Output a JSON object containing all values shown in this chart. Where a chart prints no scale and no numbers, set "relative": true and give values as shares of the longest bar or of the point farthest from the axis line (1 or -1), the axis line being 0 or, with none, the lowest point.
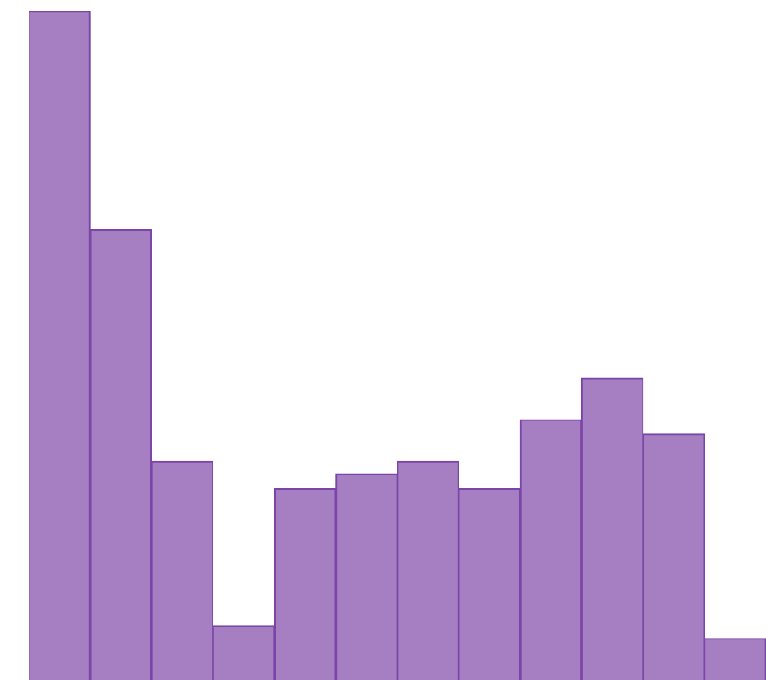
{
  "chart_data": {
    "type": "bar",
    "relative": true,
    "categories": [
      null,
      null,
      null,
      null,
      null,
      null,
      null,
      null,
      null,
      null,
      null,
      null
    ],
    "values": [
      1,
      0.673,
      0.327,
      0.081,
      0.286,
      0.308,
      0.327,
      0.286,
      0.389,
      0.451,
      0.368,
      0.062
    ],
    "color": "#a67fc2",
    "legend": false
  }
}
